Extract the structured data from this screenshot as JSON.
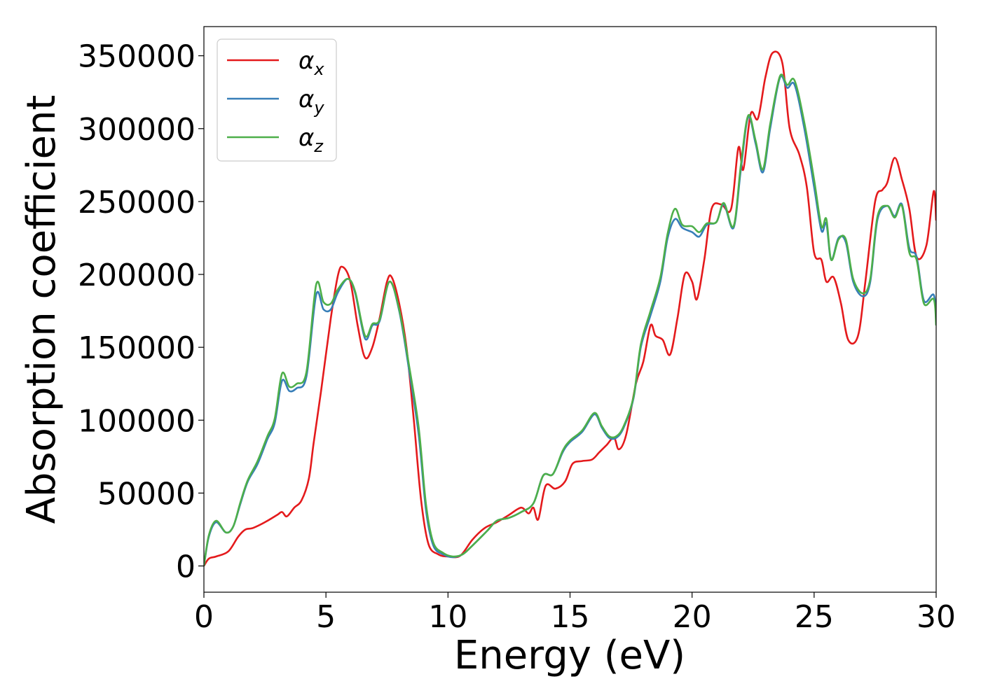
{
  "chart_data": {
    "type": "line",
    "title": "",
    "xlabel": "Energy (eV)",
    "ylabel": "Absorption coefficient",
    "xlim": [
      0,
      30
    ],
    "ylim": [
      -18000,
      370000
    ],
    "xticks": [
      0,
      5,
      10,
      15,
      20,
      25,
      30
    ],
    "yticks": [
      0,
      50000,
      100000,
      150000,
      200000,
      250000,
      300000,
      350000
    ],
    "grid": false,
    "legend_position": "top-left",
    "series": [
      {
        "name": "αx",
        "symbol": "α",
        "sub": "x",
        "color": "#e41a1c",
        "points": [
          [
            0,
            0
          ],
          [
            0.2,
            5000
          ],
          [
            0.5,
            6500
          ],
          [
            1.0,
            10000
          ],
          [
            1.4,
            20000
          ],
          [
            1.7,
            25000
          ],
          [
            2.0,
            26000
          ],
          [
            2.5,
            30000
          ],
          [
            3.0,
            35000
          ],
          [
            3.2,
            37000
          ],
          [
            3.4,
            34000
          ],
          [
            3.7,
            40000
          ],
          [
            4.0,
            45000
          ],
          [
            4.3,
            60000
          ],
          [
            4.5,
            85000
          ],
          [
            4.8,
            120000
          ],
          [
            5.2,
            170000
          ],
          [
            5.5,
            200000
          ],
          [
            5.7,
            205000
          ],
          [
            6.0,
            195000
          ],
          [
            6.3,
            165000
          ],
          [
            6.6,
            143000
          ],
          [
            6.9,
            150000
          ],
          [
            7.2,
            170000
          ],
          [
            7.5,
            195000
          ],
          [
            7.7,
            198000
          ],
          [
            8.0,
            180000
          ],
          [
            8.3,
            150000
          ],
          [
            8.6,
            100000
          ],
          [
            8.9,
            45000
          ],
          [
            9.2,
            15000
          ],
          [
            9.6,
            8000
          ],
          [
            10.0,
            6500
          ],
          [
            10.5,
            7000
          ],
          [
            11.0,
            18000
          ],
          [
            11.5,
            26000
          ],
          [
            12.0,
            30000
          ],
          [
            12.5,
            35000
          ],
          [
            13.0,
            40000
          ],
          [
            13.3,
            36000
          ],
          [
            13.5,
            40000
          ],
          [
            13.7,
            32000
          ],
          [
            14.0,
            55000
          ],
          [
            14.4,
            53000
          ],
          [
            14.8,
            58000
          ],
          [
            15.1,
            70000
          ],
          [
            15.5,
            72000
          ],
          [
            15.9,
            73000
          ],
          [
            16.2,
            78000
          ],
          [
            16.5,
            83000
          ],
          [
            16.8,
            88000
          ],
          [
            17.0,
            80000
          ],
          [
            17.3,
            90000
          ],
          [
            17.7,
            125000
          ],
          [
            18.0,
            140000
          ],
          [
            18.3,
            165000
          ],
          [
            18.5,
            158000
          ],
          [
            18.8,
            155000
          ],
          [
            19.1,
            145000
          ],
          [
            19.4,
            170000
          ],
          [
            19.7,
            200000
          ],
          [
            20.0,
            195000
          ],
          [
            20.2,
            183000
          ],
          [
            20.5,
            210000
          ],
          [
            20.8,
            245000
          ],
          [
            21.2,
            248000
          ],
          [
            21.6,
            245000
          ],
          [
            21.9,
            287000
          ],
          [
            22.1,
            272000
          ],
          [
            22.4,
            310000
          ],
          [
            22.7,
            307000
          ],
          [
            23.0,
            335000
          ],
          [
            23.3,
            352000
          ],
          [
            23.7,
            345000
          ],
          [
            24.0,
            300000
          ],
          [
            24.4,
            282000
          ],
          [
            24.7,
            260000
          ],
          [
            25.0,
            215000
          ],
          [
            25.3,
            210000
          ],
          [
            25.5,
            195000
          ],
          [
            25.8,
            198000
          ],
          [
            26.1,
            180000
          ],
          [
            26.4,
            155000
          ],
          [
            26.8,
            158000
          ],
          [
            27.1,
            195000
          ],
          [
            27.5,
            250000
          ],
          [
            27.8,
            258000
          ],
          [
            28.0,
            263000
          ],
          [
            28.3,
            280000
          ],
          [
            28.6,
            265000
          ],
          [
            28.9,
            245000
          ],
          [
            29.2,
            212000
          ],
          [
            29.6,
            220000
          ],
          [
            29.9,
            257000
          ],
          [
            30.0,
            237000
          ]
        ]
      },
      {
        "name": "αy",
        "symbol": "α",
        "sub": "y",
        "color": "#377eb8",
        "points": [
          [
            0,
            0
          ],
          [
            0.2,
            20000
          ],
          [
            0.5,
            30000
          ],
          [
            0.9,
            23000
          ],
          [
            1.2,
            27000
          ],
          [
            1.5,
            43000
          ],
          [
            1.8,
            58000
          ],
          [
            2.2,
            70000
          ],
          [
            2.6,
            87000
          ],
          [
            2.9,
            98000
          ],
          [
            3.2,
            127000
          ],
          [
            3.5,
            120000
          ],
          [
            3.8,
            122000
          ],
          [
            4.2,
            130000
          ],
          [
            4.6,
            186000
          ],
          [
            4.9,
            176000
          ],
          [
            5.2,
            176000
          ],
          [
            5.5,
            188000
          ],
          [
            5.9,
            197000
          ],
          [
            6.2,
            187000
          ],
          [
            6.6,
            156000
          ],
          [
            6.9,
            165000
          ],
          [
            7.2,
            168000
          ],
          [
            7.6,
            195000
          ],
          [
            8.0,
            175000
          ],
          [
            8.4,
            135000
          ],
          [
            8.8,
            90000
          ],
          [
            9.1,
            38000
          ],
          [
            9.4,
            14000
          ],
          [
            9.8,
            8000
          ],
          [
            10.2,
            6000
          ],
          [
            10.6,
            8000
          ],
          [
            11.0,
            14000
          ],
          [
            11.6,
            24000
          ],
          [
            12.0,
            31000
          ],
          [
            12.5,
            33000
          ],
          [
            13.0,
            37000
          ],
          [
            13.5,
            43000
          ],
          [
            13.9,
            62000
          ],
          [
            14.3,
            63000
          ],
          [
            14.7,
            78000
          ],
          [
            15.0,
            85000
          ],
          [
            15.5,
            92000
          ],
          [
            16.0,
            104000
          ],
          [
            16.3,
            95000
          ],
          [
            16.6,
            88000
          ],
          [
            16.9,
            88000
          ],
          [
            17.2,
            95000
          ],
          [
            17.6,
            115000
          ],
          [
            17.9,
            150000
          ],
          [
            18.3,
            172000
          ],
          [
            18.7,
            195000
          ],
          [
            19.0,
            225000
          ],
          [
            19.3,
            238000
          ],
          [
            19.6,
            232000
          ],
          [
            20.0,
            229000
          ],
          [
            20.3,
            226000
          ],
          [
            20.6,
            234000
          ],
          [
            21.0,
            236000
          ],
          [
            21.3,
            248000
          ],
          [
            21.7,
            232000
          ],
          [
            22.0,
            272000
          ],
          [
            22.3,
            308000
          ],
          [
            22.6,
            290000
          ],
          [
            22.9,
            270000
          ],
          [
            23.2,
            300000
          ],
          [
            23.6,
            335000
          ],
          [
            23.9,
            328000
          ],
          [
            24.2,
            330000
          ],
          [
            24.6,
            300000
          ],
          [
            25.0,
            260000
          ],
          [
            25.3,
            230000
          ],
          [
            25.5,
            235000
          ],
          [
            25.7,
            210000
          ],
          [
            26.0,
            225000
          ],
          [
            26.3,
            222000
          ],
          [
            26.6,
            195000
          ],
          [
            27.0,
            185000
          ],
          [
            27.3,
            195000
          ],
          [
            27.6,
            238000
          ],
          [
            28.0,
            247000
          ],
          [
            28.3,
            240000
          ],
          [
            28.6,
            248000
          ],
          [
            28.9,
            218000
          ],
          [
            29.2,
            212000
          ],
          [
            29.5,
            182000
          ],
          [
            29.9,
            186000
          ],
          [
            30.0,
            168000
          ]
        ]
      },
      {
        "name": "αz",
        "symbol": "α",
        "sub": "z",
        "color": "#4daf4a",
        "points": [
          [
            0,
            0
          ],
          [
            0.2,
            21000
          ],
          [
            0.5,
            31000
          ],
          [
            0.9,
            23000
          ],
          [
            1.2,
            27000
          ],
          [
            1.5,
            44000
          ],
          [
            1.8,
            59000
          ],
          [
            2.2,
            72000
          ],
          [
            2.6,
            89000
          ],
          [
            2.9,
            101000
          ],
          [
            3.2,
            132000
          ],
          [
            3.5,
            123000
          ],
          [
            3.8,
            125000
          ],
          [
            4.2,
            133000
          ],
          [
            4.6,
            193000
          ],
          [
            4.9,
            181000
          ],
          [
            5.2,
            180000
          ],
          [
            5.5,
            190000
          ],
          [
            5.9,
            197000
          ],
          [
            6.2,
            188000
          ],
          [
            6.6,
            158000
          ],
          [
            6.9,
            166000
          ],
          [
            7.2,
            169000
          ],
          [
            7.6,
            195000
          ],
          [
            8.0,
            176000
          ],
          [
            8.4,
            138000
          ],
          [
            8.8,
            95000
          ],
          [
            9.1,
            42000
          ],
          [
            9.4,
            16000
          ],
          [
            9.8,
            9000
          ],
          [
            10.2,
            6500
          ],
          [
            10.6,
            8000
          ],
          [
            11.0,
            14000
          ],
          [
            11.6,
            24000
          ],
          [
            12.0,
            31000
          ],
          [
            12.5,
            33000
          ],
          [
            13.0,
            37000
          ],
          [
            13.5,
            43000
          ],
          [
            13.9,
            62000
          ],
          [
            14.3,
            63000
          ],
          [
            14.7,
            79000
          ],
          [
            15.0,
            86000
          ],
          [
            15.5,
            93000
          ],
          [
            16.0,
            105000
          ],
          [
            16.3,
            96000
          ],
          [
            16.6,
            89000
          ],
          [
            16.9,
            89000
          ],
          [
            17.2,
            96000
          ],
          [
            17.6,
            116000
          ],
          [
            17.9,
            152000
          ],
          [
            18.3,
            175000
          ],
          [
            18.7,
            198000
          ],
          [
            19.0,
            228000
          ],
          [
            19.3,
            245000
          ],
          [
            19.6,
            234000
          ],
          [
            20.0,
            233000
          ],
          [
            20.3,
            229000
          ],
          [
            20.6,
            235000
          ],
          [
            21.0,
            236000
          ],
          [
            21.3,
            249000
          ],
          [
            21.7,
            233000
          ],
          [
            22.0,
            275000
          ],
          [
            22.3,
            309000
          ],
          [
            22.6,
            292000
          ],
          [
            22.9,
            272000
          ],
          [
            23.2,
            303000
          ],
          [
            23.6,
            336000
          ],
          [
            23.9,
            330000
          ],
          [
            24.2,
            333000
          ],
          [
            24.6,
            304000
          ],
          [
            25.0,
            265000
          ],
          [
            25.3,
            233000
          ],
          [
            25.5,
            238000
          ],
          [
            25.7,
            210000
          ],
          [
            26.0,
            224000
          ],
          [
            26.3,
            224000
          ],
          [
            26.6,
            197000
          ],
          [
            27.0,
            187000
          ],
          [
            27.3,
            197000
          ],
          [
            27.6,
            240000
          ],
          [
            28.0,
            247000
          ],
          [
            28.3,
            239000
          ],
          [
            28.6,
            247000
          ],
          [
            28.9,
            215000
          ],
          [
            29.2,
            210000
          ],
          [
            29.5,
            180000
          ],
          [
            29.9,
            183000
          ],
          [
            30.0,
            165000
          ]
        ]
      }
    ]
  }
}
